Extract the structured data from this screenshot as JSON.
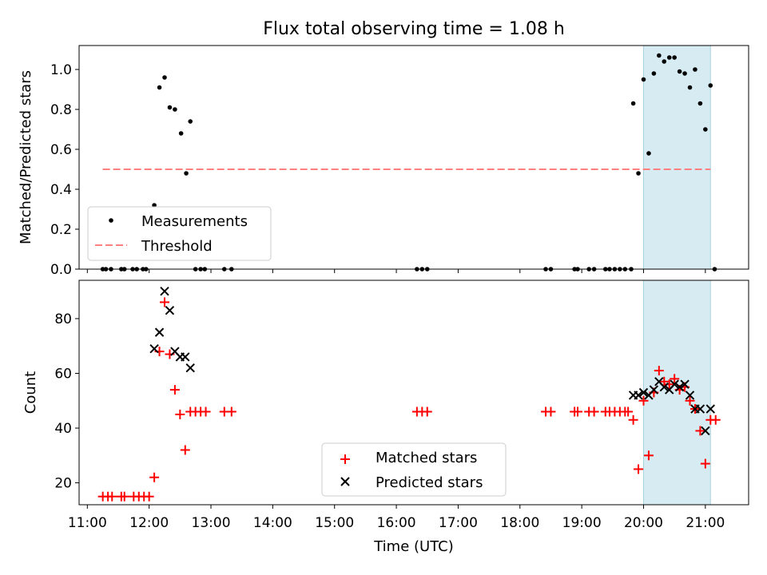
{
  "chart_data": [
    {
      "type": "scatter",
      "title": "Flux total observing time = 1.08 h",
      "xlabel": "",
      "ylabel": "Matched/Predicted stars",
      "xlim": [
        "10:52",
        "21:42"
      ],
      "ylim": [
        0,
        1.12
      ],
      "yticks": [
        "0.0",
        "0.2",
        "0.4",
        "0.6",
        "0.8",
        "1.0"
      ],
      "shaded_interval": [
        "20:00",
        "21:05"
      ],
      "threshold": {
        "name": "Threshold",
        "value": 0.5,
        "x_range": [
          "11:15",
          "21:05"
        ],
        "color": "#ff8080"
      },
      "legend_position": "lower-left",
      "series": [
        {
          "name": "Measurements",
          "color": "#000000",
          "points": [
            [
              "11:15",
              0
            ],
            [
              "11:18",
              0
            ],
            [
              "11:23",
              0
            ],
            [
              "11:33",
              0
            ],
            [
              "11:36",
              0
            ],
            [
              "11:44",
              0
            ],
            [
              "11:48",
              0
            ],
            [
              "11:54",
              0
            ],
            [
              "11:57",
              0
            ],
            [
              "12:05",
              0.32
            ],
            [
              "12:10",
              0.91
            ],
            [
              "12:15",
              0.96
            ],
            [
              "12:20",
              0.81
            ],
            [
              "12:25",
              0.8
            ],
            [
              "12:31",
              0.68
            ],
            [
              "12:36",
              0.48
            ],
            [
              "12:40",
              0.74
            ],
            [
              "12:45",
              0
            ],
            [
              "12:50",
              0
            ],
            [
              "12:54",
              0
            ],
            [
              "13:13",
              0
            ],
            [
              "13:20",
              0
            ],
            [
              "16:20",
              0
            ],
            [
              "16:25",
              0
            ],
            [
              "16:30",
              0
            ],
            [
              "18:25",
              0
            ],
            [
              "18:30",
              0
            ],
            [
              "18:53",
              0
            ],
            [
              "18:56",
              0
            ],
            [
              "19:07",
              0
            ],
            [
              "19:12",
              0
            ],
            [
              "19:23",
              0
            ],
            [
              "19:27",
              0
            ],
            [
              "19:32",
              0
            ],
            [
              "19:37",
              0
            ],
            [
              "19:42",
              0
            ],
            [
              "19:48",
              0
            ],
            [
              "19:50",
              0.83
            ],
            [
              "19:55",
              0.48
            ],
            [
              "20:00",
              0.95
            ],
            [
              "20:05",
              0.58
            ],
            [
              "20:10",
              0.98
            ],
            [
              "20:15",
              1.07
            ],
            [
              "20:20",
              1.04
            ],
            [
              "20:25",
              1.06
            ],
            [
              "20:30",
              1.06
            ],
            [
              "20:35",
              0.99
            ],
            [
              "20:40",
              0.98
            ],
            [
              "20:45",
              0.91
            ],
            [
              "20:50",
              1.0
            ],
            [
              "20:55",
              0.83
            ],
            [
              "21:00",
              0.7
            ],
            [
              "21:05",
              0.92
            ],
            [
              "21:09",
              0
            ]
          ]
        }
      ]
    },
    {
      "type": "scatter",
      "title": "",
      "xlabel": "Time (UTC)",
      "ylabel": "Count",
      "xlim": [
        "10:52",
        "21:42"
      ],
      "ylim": [
        12,
        94
      ],
      "yticks": [
        "20",
        "40",
        "60",
        "80"
      ],
      "xticks": [
        "11:00",
        "12:00",
        "13:00",
        "14:00",
        "15:00",
        "16:00",
        "17:00",
        "18:00",
        "19:00",
        "20:00",
        "21:00"
      ],
      "shaded_interval": [
        "20:00",
        "21:05"
      ],
      "legend_position": "lower-center",
      "series": [
        {
          "name": "Matched stars",
          "color": "#ff0000",
          "marker": "+",
          "points": [
            [
              "11:15",
              15
            ],
            [
              "11:20",
              15
            ],
            [
              "11:24",
              15
            ],
            [
              "11:33",
              15
            ],
            [
              "11:36",
              15
            ],
            [
              "11:45",
              15
            ],
            [
              "11:50",
              15
            ],
            [
              "11:55",
              15
            ],
            [
              "12:00",
              15
            ],
            [
              "12:05",
              22
            ],
            [
              "12:10",
              68
            ],
            [
              "12:15",
              86
            ],
            [
              "12:20",
              67
            ],
            [
              "12:25",
              54
            ],
            [
              "12:30",
              45
            ],
            [
              "12:35",
              32
            ],
            [
              "12:40",
              46
            ],
            [
              "12:45",
              46
            ],
            [
              "12:50",
              46
            ],
            [
              "12:55",
              46
            ],
            [
              "13:13",
              46
            ],
            [
              "13:20",
              46
            ],
            [
              "16:20",
              46
            ],
            [
              "16:25",
              46
            ],
            [
              "16:30",
              46
            ],
            [
              "18:25",
              46
            ],
            [
              "18:30",
              46
            ],
            [
              "18:53",
              46
            ],
            [
              "18:56",
              46
            ],
            [
              "19:07",
              46
            ],
            [
              "19:12",
              46
            ],
            [
              "19:23",
              46
            ],
            [
              "19:27",
              46
            ],
            [
              "19:32",
              46
            ],
            [
              "19:37",
              46
            ],
            [
              "19:42",
              46
            ],
            [
              "19:45",
              46
            ],
            [
              "19:50",
              43
            ],
            [
              "19:55",
              25
            ],
            [
              "20:00",
              50
            ],
            [
              "20:05",
              30
            ],
            [
              "20:10",
              53
            ],
            [
              "20:15",
              61
            ],
            [
              "20:20",
              57
            ],
            [
              "20:25",
              56
            ],
            [
              "20:30",
              58
            ],
            [
              "20:35",
              54
            ],
            [
              "20:40",
              55
            ],
            [
              "20:45",
              50
            ],
            [
              "20:50",
              47
            ],
            [
              "20:55",
              39
            ],
            [
              "21:00",
              27
            ],
            [
              "21:05",
              43
            ],
            [
              "21:10",
              43
            ]
          ]
        },
        {
          "name": "Predicted stars",
          "color": "#000000",
          "marker": "x",
          "points": [
            [
              "12:05",
              69
            ],
            [
              "12:10",
              75
            ],
            [
              "12:15",
              90
            ],
            [
              "12:20",
              83
            ],
            [
              "12:25",
              68
            ],
            [
              "12:30",
              66
            ],
            [
              "12:35",
              66
            ],
            [
              "12:40",
              62
            ],
            [
              "19:50",
              52
            ],
            [
              "19:55",
              52
            ],
            [
              "20:00",
              53
            ],
            [
              "20:05",
              52
            ],
            [
              "20:10",
              54
            ],
            [
              "20:15",
              57
            ],
            [
              "20:20",
              55
            ],
            [
              "20:25",
              54
            ],
            [
              "20:30",
              56
            ],
            [
              "20:35",
              55
            ],
            [
              "20:40",
              56
            ],
            [
              "20:45",
              52
            ],
            [
              "20:50",
              47
            ],
            [
              "20:55",
              47
            ],
            [
              "21:00",
              39
            ],
            [
              "21:05",
              47
            ]
          ]
        }
      ]
    }
  ]
}
